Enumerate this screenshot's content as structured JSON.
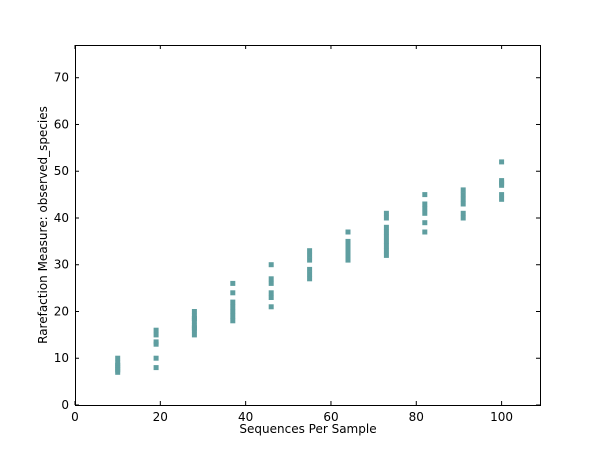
{
  "chart_data": {
    "type": "scatter",
    "title": "",
    "xlabel": "Sequences Per Sample",
    "ylabel": "Rarefaction Measure: observed_species",
    "xlim": [
      0,
      109
    ],
    "ylim": [
      0,
      77
    ],
    "xticks": [
      "0",
      "20",
      "40",
      "60",
      "80",
      "100"
    ],
    "yticks": [
      "0",
      "10",
      "20",
      "30",
      "40",
      "50",
      "60",
      "70"
    ],
    "grid": false,
    "marker_color": "#5f9ea0",
    "series": [
      {
        "points": [
          [
            10,
            7
          ],
          [
            10,
            7.5
          ],
          [
            10,
            8
          ],
          [
            10,
            8.5
          ],
          [
            10,
            9
          ],
          [
            10,
            10
          ],
          [
            19,
            8
          ],
          [
            19,
            10
          ],
          [
            19,
            13
          ],
          [
            19,
            13.5
          ],
          [
            19,
            15
          ],
          [
            19,
            16
          ],
          [
            28,
            15
          ],
          [
            28,
            16
          ],
          [
            28,
            16.5
          ],
          [
            28,
            17
          ],
          [
            28,
            18
          ],
          [
            28,
            18.5
          ],
          [
            28,
            19
          ],
          [
            28,
            20
          ],
          [
            37,
            18
          ],
          [
            37,
            19
          ],
          [
            37,
            20
          ],
          [
            37,
            21
          ],
          [
            37,
            22
          ],
          [
            37,
            24
          ],
          [
            37,
            26
          ],
          [
            46,
            21
          ],
          [
            46,
            23
          ],
          [
            46,
            24
          ],
          [
            46,
            26
          ],
          [
            46,
            27
          ],
          [
            46,
            30
          ],
          [
            55,
            27
          ],
          [
            55,
            28
          ],
          [
            55,
            29
          ],
          [
            55,
            31
          ],
          [
            55,
            32
          ],
          [
            55,
            33
          ],
          [
            64,
            31
          ],
          [
            64,
            31.5
          ],
          [
            64,
            32
          ],
          [
            64,
            33
          ],
          [
            64,
            34
          ],
          [
            64,
            35
          ],
          [
            64,
            37
          ],
          [
            73,
            32
          ],
          [
            73,
            33
          ],
          [
            73,
            34
          ],
          [
            73,
            35
          ],
          [
            73,
            36
          ],
          [
            73,
            37
          ],
          [
            73,
            38
          ],
          [
            73,
            40
          ],
          [
            73,
            41
          ],
          [
            82,
            37
          ],
          [
            82,
            39
          ],
          [
            82,
            41
          ],
          [
            82,
            42
          ],
          [
            82,
            43
          ],
          [
            82,
            45
          ],
          [
            91,
            40
          ],
          [
            91,
            41
          ],
          [
            91,
            43
          ],
          [
            91,
            44
          ],
          [
            91,
            45
          ],
          [
            91,
            46
          ],
          [
            100,
            44
          ],
          [
            100,
            45
          ],
          [
            100,
            47
          ],
          [
            100,
            47.5
          ],
          [
            100,
            48
          ],
          [
            100,
            52
          ]
        ]
      }
    ]
  }
}
